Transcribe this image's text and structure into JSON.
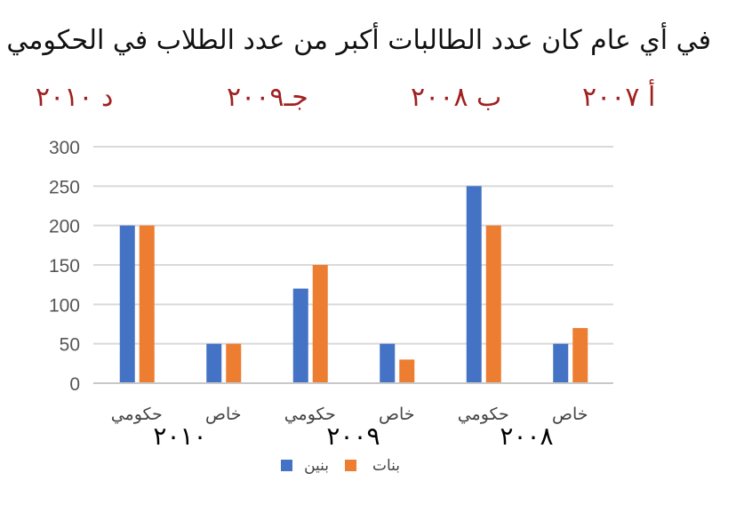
{
  "question": "في أي عام كان عدد الطالبات أكبر من عدد الطلاب في الحكومي",
  "options": [
    {
      "label": "أ ٢٠٠٧"
    },
    {
      "label": "ب ٢٠٠٨"
    },
    {
      "label": "جـ٢٠٠٩"
    },
    {
      "label": "د ٢٠١٠"
    }
  ],
  "colors": {
    "boys": "#4472c4",
    "girls": "#ed7d31",
    "options": "#a02020",
    "grid": "#d9d9d9"
  },
  "chart_data": {
    "type": "bar",
    "categories": [
      "حكومي",
      "خاص",
      "حكومي",
      "خاص",
      "حكومي",
      "خاص"
    ],
    "groups": [
      "٢٠١٠",
      "٢٠٠٩",
      "٢٠٠٨"
    ],
    "series": [
      {
        "name": "بنين",
        "values": [
          200,
          50,
          120,
          50,
          250,
          50
        ]
      },
      {
        "name": "بنات",
        "values": [
          200,
          50,
          150,
          30,
          200,
          70
        ]
      }
    ],
    "yticks": [
      0,
      50,
      100,
      150,
      200,
      250,
      300
    ],
    "ylim": [
      0,
      300
    ],
    "grid": true,
    "legend": "bottom"
  }
}
